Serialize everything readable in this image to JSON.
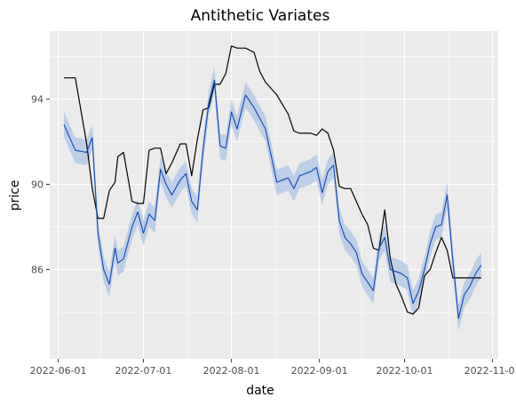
{
  "chart_data": {
    "type": "line",
    "title": "Antithetic Variates",
    "xlabel": "date",
    "ylabel": "price",
    "x_ticks": [
      "2022-06-01",
      "2022-07-01",
      "2022-08-01",
      "2022-09-01",
      "2022-10-01",
      "2022-11-01"
    ],
    "y_ticks": [
      86,
      90,
      94
    ],
    "xlim": [
      "2022-05-29",
      "2022-11-03"
    ],
    "ylim": [
      81.8,
      97.2
    ],
    "grid": true,
    "legend": "none",
    "colors": {
      "panel": "#ebebeb",
      "grid": "#ffffff",
      "actual": "#000000",
      "estimate": "#0d47b7",
      "band": "#aec4e6"
    },
    "dates": [
      "2022-06-03",
      "2022-06-07",
      "2022-06-11",
      "2022-06-13",
      "2022-06-15",
      "2022-06-17",
      "2022-06-19",
      "2022-06-21",
      "2022-06-22",
      "2022-06-24",
      "2022-06-27",
      "2022-06-29",
      "2022-07-01",
      "2022-07-03",
      "2022-07-05",
      "2022-07-07",
      "2022-07-09",
      "2022-07-11",
      "2022-07-14",
      "2022-07-16",
      "2022-07-18",
      "2022-07-20",
      "2022-07-22",
      "2022-07-24",
      "2022-07-26",
      "2022-07-28",
      "2022-07-30",
      "2022-08-01",
      "2022-08-03",
      "2022-08-06",
      "2022-08-09",
      "2022-08-11",
      "2022-08-13",
      "2022-08-17",
      "2022-08-21",
      "2022-08-23",
      "2022-08-25",
      "2022-08-27",
      "2022-08-29",
      "2022-08-31",
      "2022-09-02",
      "2022-09-04",
      "2022-09-06",
      "2022-09-08",
      "2022-09-10",
      "2022-09-12",
      "2022-09-14",
      "2022-09-16",
      "2022-09-18",
      "2022-09-20",
      "2022-09-22",
      "2022-09-24",
      "2022-09-26",
      "2022-09-28",
      "2022-09-30",
      "2022-10-02",
      "2022-10-04",
      "2022-10-06",
      "2022-10-08",
      "2022-10-10",
      "2022-10-12",
      "2022-10-14",
      "2022-10-16",
      "2022-10-18",
      "2022-10-20",
      "2022-10-22",
      "2022-10-24",
      "2022-10-26",
      "2022-10-28"
    ],
    "series": [
      {
        "values": [
          95.0,
          95.0,
          91.9,
          89.8,
          88.4,
          88.4,
          89.7,
          90.1,
          91.3,
          91.5,
          89.2,
          89.1,
          89.1,
          91.6,
          91.7,
          91.7,
          90.5,
          91.0,
          91.9,
          91.9,
          90.4,
          92.1,
          93.5,
          93.6,
          94.7,
          94.7,
          95.2,
          96.5,
          96.4,
          96.4,
          96.2,
          95.3,
          94.8,
          94.2,
          93.3,
          92.5,
          92.4,
          92.4,
          92.4,
          92.3,
          92.6,
          92.4,
          91.6,
          89.9,
          89.8,
          89.8,
          89.2,
          88.6,
          88.1,
          87.0,
          86.9,
          88.8,
          86.5,
          85.3,
          84.7,
          84.0,
          83.9,
          84.2,
          85.7,
          86.0,
          86.8,
          87.5,
          86.9,
          85.6,
          85.6,
          85.6,
          85.6,
          85.6,
          85.6
        ],
        "_note": "actual"
      },
      {
        "values": [
          92.8,
          91.6,
          91.5,
          92.2,
          87.7,
          86.0,
          85.3,
          87.0,
          86.3,
          86.5,
          88.0,
          88.7,
          87.7,
          88.6,
          88.3,
          90.7,
          90.0,
          89.5,
          90.2,
          90.5,
          89.2,
          88.8,
          91.6,
          93.8,
          94.9,
          91.8,
          91.7,
          93.4,
          92.6,
          94.2,
          93.6,
          93.1,
          92.6,
          90.1,
          90.3,
          89.8,
          90.4,
          90.5,
          90.6,
          90.8,
          89.6,
          90.6,
          90.9,
          88.3,
          87.5,
          87.2,
          86.8,
          85.8,
          85.4,
          85.0,
          87.0,
          87.5,
          86.0,
          85.9,
          85.8,
          85.6,
          84.4,
          85.0,
          86.0,
          87.2,
          88.0,
          88.1,
          89.5,
          86.4,
          83.7,
          84.8,
          85.2,
          85.8,
          86.2
        ],
        "_note": "estimate"
      }
    ],
    "band_halfwidth": 0.6
  }
}
